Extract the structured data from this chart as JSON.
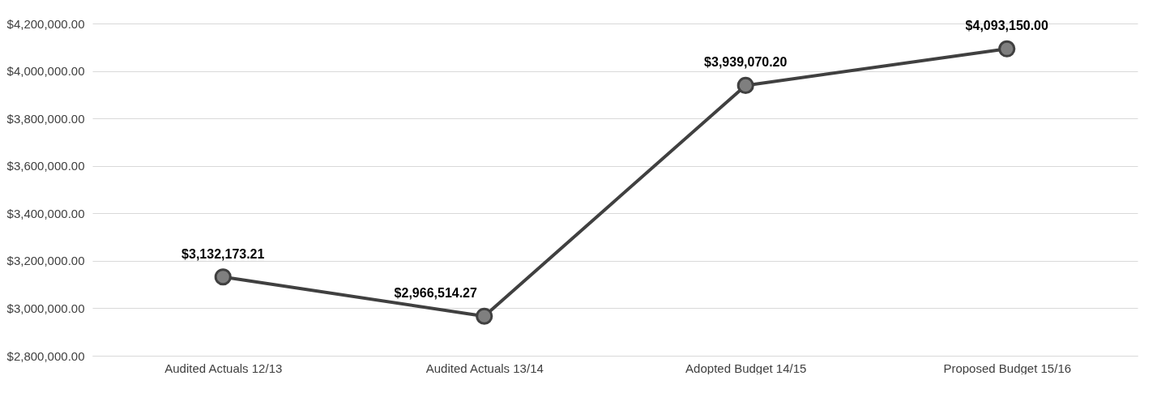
{
  "chart_data": {
    "type": "line",
    "categories": [
      "Audited Actuals 12/13",
      "Audited Actuals 13/14",
      "Adopted Budget 14/15",
      "Proposed Budget 15/16"
    ],
    "series": [
      {
        "color": "#404040",
        "values": [
          3132173.21,
          2966514.27,
          3939070.2,
          4093150
        ]
      }
    ],
    "value_labels": [
      "$3,132,173.21",
      "$2,966,514.27",
      "$3,939,070.20",
      "$4,093,150.00"
    ],
    "ylim": [
      2800000,
      4200000
    ],
    "yticks": [
      {
        "value": 2800000,
        "label": "$2,800,000.00"
      },
      {
        "value": 3000000,
        "label": "$3,000,000.00"
      },
      {
        "value": 3200000,
        "label": "$3,200,000.00"
      },
      {
        "value": 3400000,
        "label": "$3,400,000.00"
      },
      {
        "value": 3600000,
        "label": "$3,600,000.00"
      },
      {
        "value": 3800000,
        "label": "$3,800,000.00"
      },
      {
        "value": 4000000,
        "label": "$4,000,000.00"
      },
      {
        "value": 4200000,
        "label": "$4,200,000.00"
      }
    ],
    "grid": "y",
    "marker": "circle",
    "line_style": "solid",
    "legend": false
  }
}
